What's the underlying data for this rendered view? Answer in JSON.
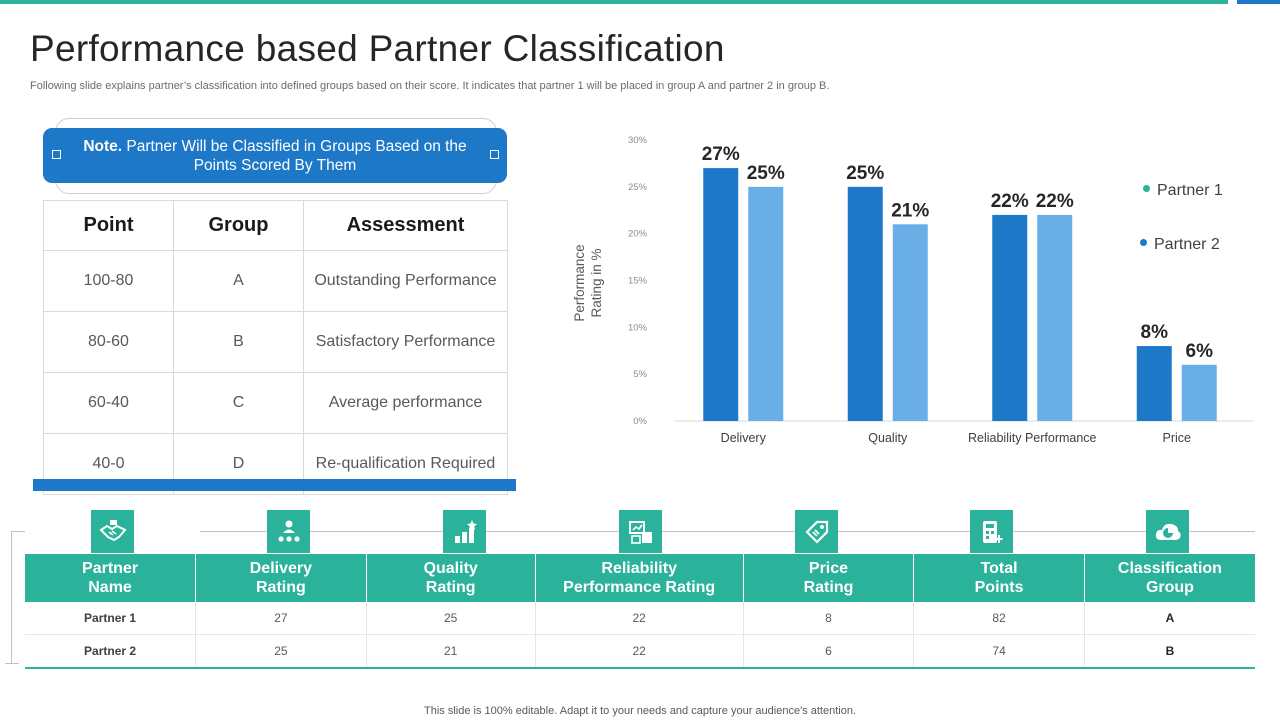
{
  "header": {
    "title": "Performance based Partner Classification",
    "subtitle": "Following slide explains partner’s classification into defined groups based on their score. It indicates that partner 1 will be placed in group A and partner 2 in group B."
  },
  "note": {
    "label": "Note.",
    "text": " Partner Will be Classified in Groups Based on the Points Scored By Them"
  },
  "grade_table": {
    "headers": [
      "Point",
      "Group",
      "Assessment"
    ],
    "rows": [
      [
        "100-80",
        "A",
        "Outstanding Performance"
      ],
      [
        "80-60",
        "B",
        "Satisfactory Performance"
      ],
      [
        "60-40",
        "C",
        "Average performance"
      ],
      [
        "40-0",
        "D",
        "Re-qualification Required"
      ]
    ]
  },
  "chart_data": {
    "type": "bar",
    "categories": [
      "Delivery",
      "Quality",
      "Reliability Performance",
      "Price"
    ],
    "series": [
      {
        "name": "Partner 1",
        "values": [
          27,
          25,
          22,
          8
        ],
        "labels": [
          "27%",
          "25%",
          "22%",
          "8%"
        ],
        "color": "#1e78c8"
      },
      {
        "name": "Partner 2",
        "values": [
          25,
          21,
          22,
          6
        ],
        "labels": [
          "25%",
          "21%",
          "22%",
          "6%"
        ],
        "color": "#6aaee8"
      }
    ],
    "ylabel": "Performance Rating in %",
    "ylim": [
      0,
      30
    ],
    "yticks": [
      "0%",
      "5%",
      "10%",
      "15%",
      "20%",
      "25%",
      "30%"
    ],
    "legend_position": "right",
    "legend_dot_colors": [
      "#2bb29a",
      "#1e78c8"
    ],
    "grid": false
  },
  "score_table": {
    "headers": [
      {
        "line1": "Partner",
        "line2": "Name",
        "icon": "handshake-icon"
      },
      {
        "line1": "Delivery",
        "line2": "Rating",
        "icon": "team-rating-icon"
      },
      {
        "line1": "Quality",
        "line2": "Rating",
        "icon": "growth-stars-icon"
      },
      {
        "line1": "Reliability",
        "line2": "Performance Rating",
        "icon": "reliability-chart-icon"
      },
      {
        "line1": "Price",
        "line2": "Rating",
        "icon": "price-tag-icon"
      },
      {
        "line1": "Total",
        "line2": "Points",
        "icon": "calculator-icon"
      },
      {
        "line1": "Classification",
        "line2": "Group",
        "icon": "cloud-pie-icon"
      }
    ],
    "rows": [
      [
        "Partner 1",
        "27",
        "25",
        "22",
        "8",
        "82",
        "A"
      ],
      [
        "Partner 2",
        "25",
        "21",
        "22",
        "6",
        "74",
        "B"
      ]
    ]
  },
  "footer": "This slide is 100% editable. Adapt it to your needs and capture your audience's attention.",
  "colors": {
    "teal": "#2bb29a",
    "blue": "#1e78c8",
    "light_blue": "#6aaee8"
  }
}
